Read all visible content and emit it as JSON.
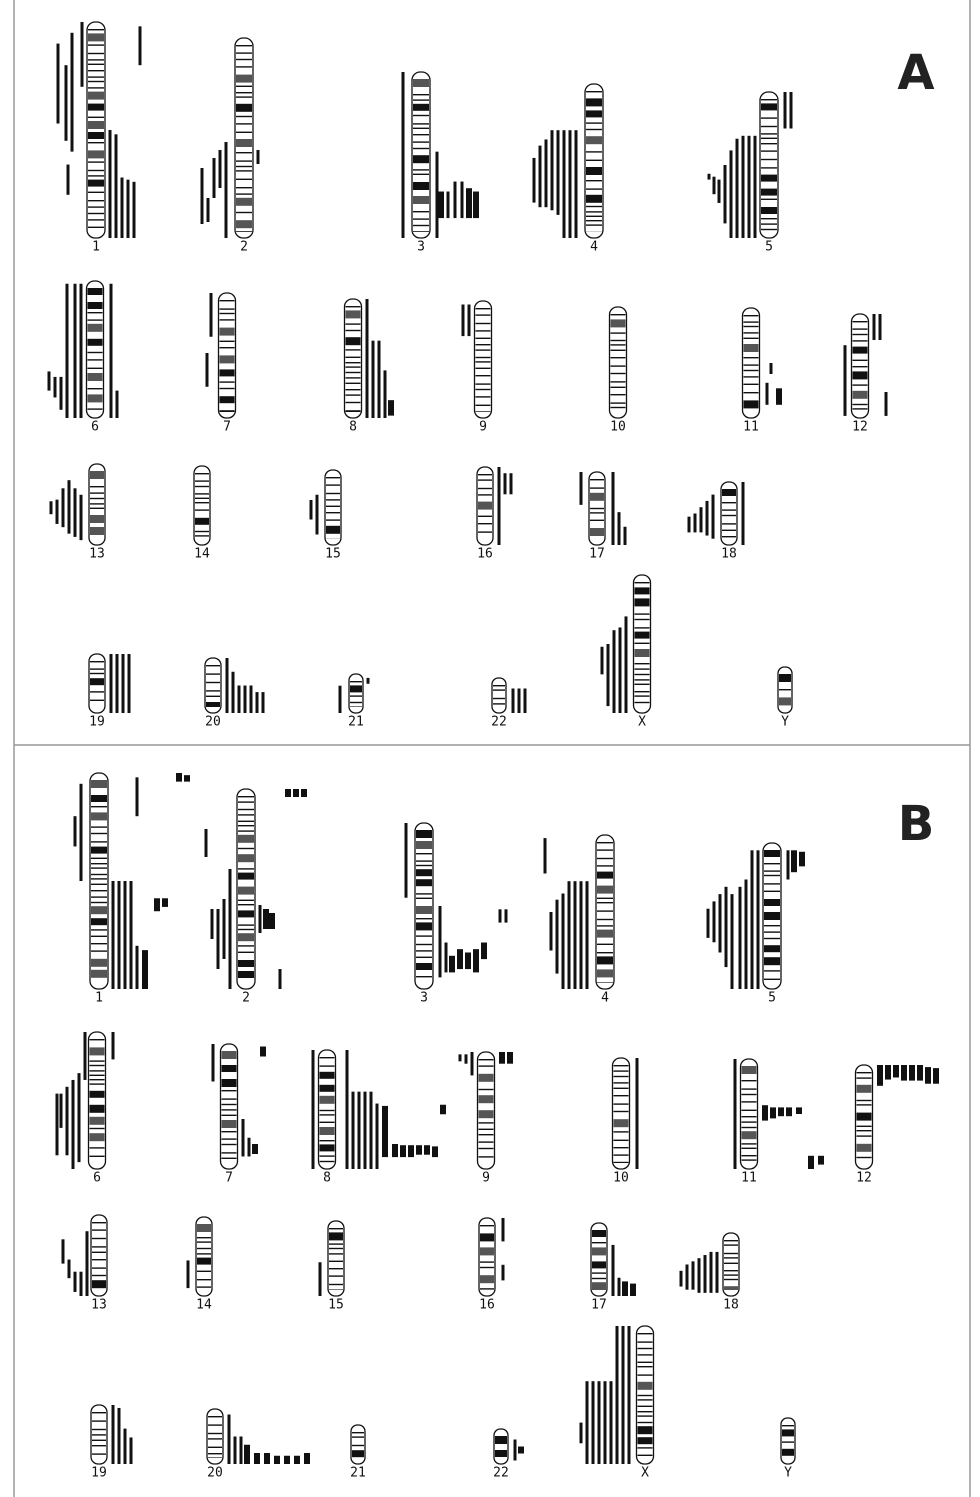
{
  "panels": [
    {
      "label": "A",
      "chromosomes": [
        "1",
        "2",
        "3",
        "4",
        "5",
        "6",
        "7",
        "8",
        "9",
        "10",
        "11",
        "12",
        "13",
        "14",
        "15",
        "16",
        "17",
        "18",
        "19",
        "20",
        "21",
        "22",
        "X",
        "Y"
      ]
    },
    {
      "label": "B",
      "chromosomes": [
        "1",
        "2",
        "3",
        "4",
        "5",
        "6",
        "7",
        "8",
        "9",
        "10",
        "11",
        "12",
        "13",
        "14",
        "15",
        "16",
        "17",
        "18",
        "19",
        "20",
        "21",
        "22",
        "X",
        "Y"
      ]
    }
  ]
}
